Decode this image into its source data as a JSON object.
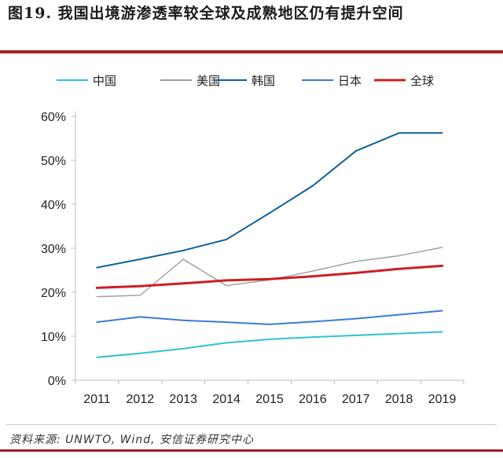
{
  "title": "图19. 我国出境游渗透率较全球及成熟地区仍有提升空间",
  "source": "资料来源: UNWTO, Wind, 安信证券研究中心",
  "chart_data": {
    "type": "line",
    "title": "",
    "xlabel": "",
    "ylabel": "",
    "categories": [
      "2011",
      "2012",
      "2013",
      "2014",
      "2015",
      "2016",
      "2017",
      "2018",
      "2019"
    ],
    "ylim": [
      0,
      60
    ],
    "y_ticks": [
      "0%",
      "10%",
      "20%",
      "30%",
      "40%",
      "50%",
      "60%"
    ],
    "y_unit": "%",
    "grid": false,
    "legend_position": "top",
    "series": [
      {
        "name": "中国",
        "color": "#2ec3cf",
        "values": [
          5.2,
          6.1,
          7.2,
          8.5,
          9.3,
          9.8,
          10.2,
          10.6,
          11.0
        ]
      },
      {
        "name": "美国",
        "color": "#9c9c9c",
        "values": [
          19.0,
          19.3,
          27.5,
          21.5,
          22.8,
          24.8,
          27.0,
          28.3,
          30.2
        ]
      },
      {
        "name": "韩国",
        "color": "#0e5f96",
        "values": [
          25.6,
          27.5,
          29.5,
          32.0,
          38.0,
          44.2,
          52.1,
          56.2,
          56.2
        ]
      },
      {
        "name": "日本",
        "color": "#3a7bd5",
        "values": [
          13.2,
          14.4,
          13.6,
          13.2,
          12.7,
          13.3,
          14.0,
          14.9,
          15.8
        ]
      },
      {
        "name": "全球",
        "color": "#cc1f24",
        "values": [
          21.0,
          21.4,
          22.0,
          22.7,
          23.0,
          23.6,
          24.4,
          25.3,
          26.0
        ]
      }
    ]
  }
}
